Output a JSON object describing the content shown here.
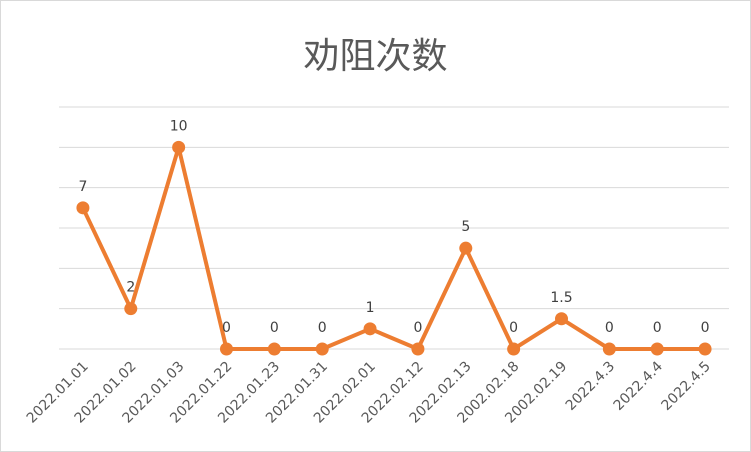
{
  "chart_data": {
    "type": "line",
    "title": "劝阻次数",
    "xlabel": "",
    "ylabel": "",
    "categories": [
      "2022.01.01",
      "2022.01.02",
      "2022.01.03",
      "2022.01.22",
      "2022.01.23",
      "2022.01.31",
      "2022.02.01",
      "2022.02.12",
      "2022.02.13",
      "2002.02.18",
      "2002.02.19",
      "2022.4.3",
      "2022.4.4",
      "2022.4.5"
    ],
    "series": [
      {
        "values": [
          7,
          2,
          10,
          0,
          0,
          0,
          1,
          0,
          5,
          0,
          1.5,
          0,
          0,
          0
        ]
      }
    ],
    "data_labels": [
      "7",
      "2",
      "10",
      "0",
      "0",
      "0",
      "1",
      "0",
      "5",
      "0",
      "1.5",
      "0",
      "0",
      "0"
    ],
    "ylim": [
      0,
      12
    ],
    "grid": true,
    "legend": "none",
    "color": "#ED7D31",
    "grid_color": "#d9d9d9"
  }
}
